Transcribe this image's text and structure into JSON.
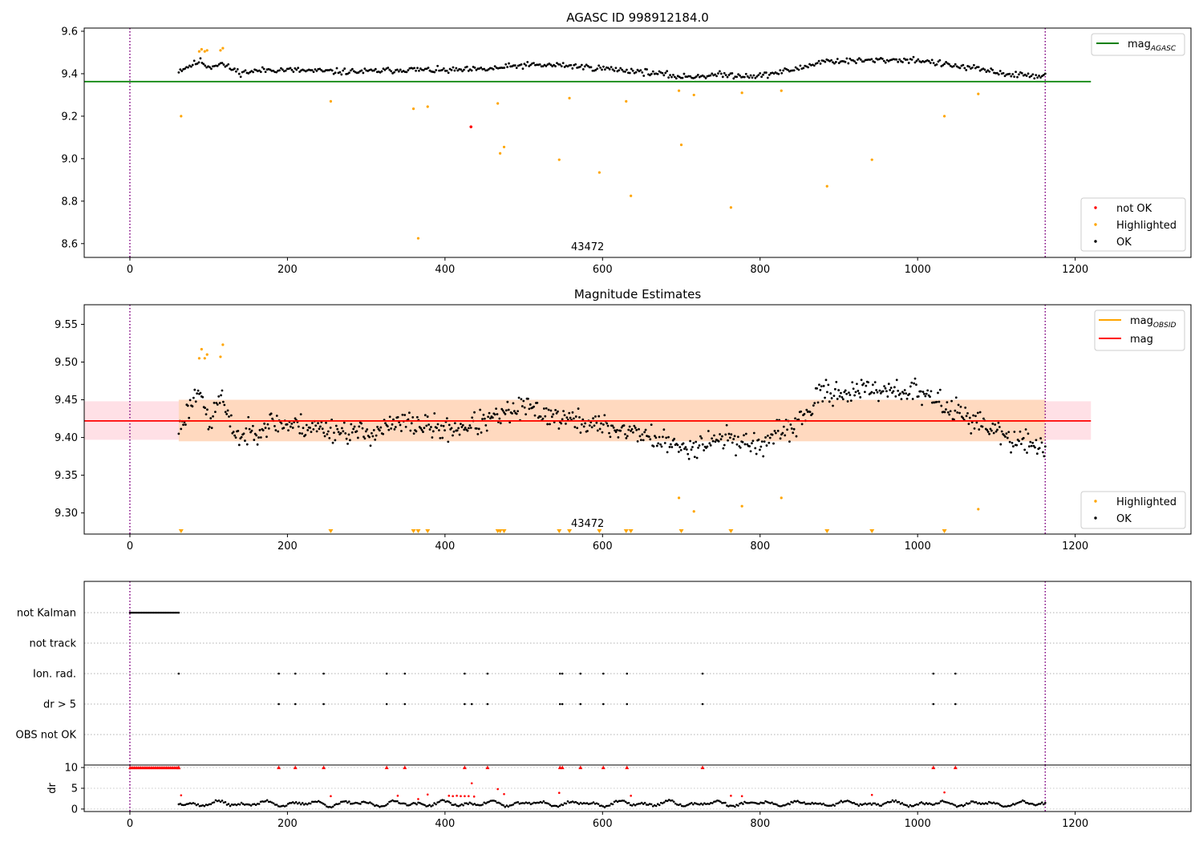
{
  "chart_data": [
    {
      "type": "scatter",
      "title": "AGASC ID 998912184.0",
      "xlim": [
        -58,
        1347
      ],
      "ylim": [
        8.535,
        9.615
      ],
      "xticks": [
        0,
        200,
        400,
        600,
        800,
        1000,
        1200
      ],
      "yticks": [
        8.6,
        8.8,
        9.0,
        9.2,
        9.4,
        9.6
      ],
      "ytick_labels": [
        "8.6",
        "8.8",
        "9.0",
        "9.2",
        "9.4",
        "9.6"
      ],
      "obsid_bounds": [
        0,
        1162
      ],
      "obsid_label": "43472",
      "obsid_label_x": 581,
      "legend_lines": [
        {
          "label": "mag",
          "sub": "AGASC",
          "color": "#008000"
        }
      ],
      "legend_points": [
        {
          "label": "not OK",
          "color": "#ff0000"
        },
        {
          "label": "Highlighted",
          "color": "#ffa500"
        },
        {
          "label": "OK",
          "color": "#000000"
        }
      ],
      "mag_agasc": {
        "value": 9.363,
        "x_range": [
          -58,
          1220
        ],
        "color": "#008000"
      },
      "ok_series": {
        "x_start": 62,
        "x_end": 1162,
        "n": 560,
        "color": "#000000",
        "profile_x": [
          62,
          90,
          100,
          115,
          125,
          140,
          180,
          260,
          300,
          350,
          400,
          450,
          500,
          550,
          600,
          650,
          700,
          750,
          800,
          850,
          880,
          920,
          960,
          1000,
          1040,
          1080,
          1120,
          1162
        ],
        "profile_y": [
          9.415,
          9.46,
          9.43,
          9.45,
          9.43,
          9.405,
          9.42,
          9.41,
          9.41,
          9.42,
          9.415,
          9.42,
          9.44,
          9.44,
          9.425,
          9.41,
          9.385,
          9.395,
          9.39,
          9.425,
          9.46,
          9.46,
          9.465,
          9.465,
          9.44,
          9.42,
          9.395,
          9.39
        ],
        "noise": 0.012
      },
      "highlighted": {
        "x": [
          65,
          88,
          91,
          95,
          98,
          115,
          118,
          255,
          360,
          366,
          378,
          467,
          470,
          475,
          545,
          558,
          596,
          630,
          636,
          697,
          700,
          716,
          763,
          777,
          827,
          885,
          942,
          1034,
          1077
        ],
        "y": [
          9.2,
          9.505,
          9.515,
          9.505,
          9.51,
          9.51,
          9.52,
          9.27,
          9.235,
          8.625,
          9.245,
          9.26,
          9.025,
          9.055,
          8.995,
          9.285,
          8.935,
          9.27,
          8.825,
          9.32,
          9.065,
          9.3,
          8.77,
          9.31,
          9.32,
          8.87,
          8.995,
          9.2,
          9.305
        ],
        "color": "#ffa500"
      },
      "not_ok": {
        "x": [
          433
        ],
        "y": [
          9.15
        ],
        "color": "#ff0000"
      }
    },
    {
      "type": "scatter",
      "title": "Magnitude Estimates",
      "xlim": [
        -58,
        1347
      ],
      "ylim": [
        9.272,
        9.576
      ],
      "xticks": [
        0,
        200,
        400,
        600,
        800,
        1000,
        1200
      ],
      "yticks": [
        9.3,
        9.35,
        9.4,
        9.45,
        9.5,
        9.55
      ],
      "ytick_labels": [
        "9.30",
        "9.35",
        "9.40",
        "9.45",
        "9.50",
        "9.55"
      ],
      "obsid_bounds": [
        0,
        1162
      ],
      "obsid_label": "43472",
      "obsid_label_x": 581,
      "legend_lines": [
        {
          "label": "mag",
          "sub": "OBSID",
          "color": "#ffa500"
        },
        {
          "label": "mag",
          "sub": "",
          "color": "#ff0000"
        }
      ],
      "legend_points": [
        {
          "label": "Highlighted",
          "color": "#ffa500"
        },
        {
          "label": "OK",
          "color": "#000000"
        }
      ],
      "mag": {
        "value": 9.422,
        "band": [
          9.397,
          9.448
        ],
        "x_range": [
          -58,
          1220
        ],
        "color": "#ff0000"
      },
      "mag_obsid": {
        "value": 9.422,
        "band": [
          9.395,
          9.45
        ],
        "x_range": [
          62,
          1162
        ],
        "color": "#ffa500"
      },
      "ok_series": {
        "x_start": 62,
        "x_end": 1162,
        "n": 760,
        "color": "#000000",
        "profile_x": [
          62,
          80,
          90,
          100,
          115,
          125,
          140,
          180,
          260,
          300,
          350,
          400,
          450,
          500,
          550,
          600,
          650,
          700,
          750,
          800,
          850,
          880,
          920,
          960,
          1000,
          1040,
          1080,
          1120,
          1162
        ],
        "profile_y": [
          9.41,
          9.45,
          9.47,
          9.41,
          9.46,
          9.42,
          9.4,
          9.42,
          9.41,
          9.405,
          9.42,
          9.41,
          9.42,
          9.44,
          9.425,
          9.415,
          9.405,
          9.385,
          9.4,
          9.39,
          9.42,
          9.46,
          9.46,
          9.465,
          9.46,
          9.44,
          9.42,
          9.395,
          9.39
        ],
        "noise": 0.013
      },
      "highlighted": {
        "x": [
          88,
          91,
          95,
          98,
          115,
          118,
          697,
          716,
          777,
          827,
          1077
        ],
        "y": [
          9.505,
          9.517,
          9.505,
          9.51,
          9.507,
          9.523,
          9.32,
          9.302,
          9.309,
          9.32,
          9.305
        ],
        "color": "#ffa500"
      },
      "lower_markers": {
        "x": [
          65,
          255,
          360,
          366,
          378,
          467,
          470,
          475,
          545,
          558,
          596,
          630,
          636,
          700,
          763,
          885,
          942,
          1034
        ],
        "color": "#ffa500"
      }
    },
    {
      "type": "scatter",
      "title": "",
      "xlim": [
        -58,
        1347
      ],
      "xticks": [
        0,
        200,
        400,
        600,
        800,
        1000,
        1200
      ],
      "obsid_bounds": [
        0,
        1162
      ],
      "flag_rows": [
        "not Kalman",
        "not track",
        "Ion. rad.",
        "dr > 5",
        "OBS not OK"
      ],
      "not_kalman": {
        "x_start": 0,
        "x_end": 62,
        "n": 30
      },
      "ion_rad": {
        "x": [
          62,
          189,
          210,
          246,
          326,
          349,
          425,
          454,
          546,
          549,
          572,
          601,
          631,
          727,
          1020,
          1048
        ]
      },
      "dr_gt_5": {
        "x": [
          189,
          210,
          246,
          326,
          349,
          425,
          434,
          454,
          546,
          549,
          572,
          601,
          631,
          727,
          1020,
          1048
        ]
      },
      "dr": {
        "ylabel": "dr",
        "yticks": [
          0,
          5,
          10
        ],
        "ylim": [
          -0.6,
          10.6
        ],
        "clip_value": 10,
        "clipped_x": [
          0,
          62,
          189,
          210,
          246,
          326,
          349,
          425,
          454,
          546,
          549,
          572,
          601,
          631,
          727,
          1020,
          1048
        ],
        "series": {
          "x_start": 62,
          "x_end": 1162,
          "n": 540,
          "base": 1.3,
          "amp": 0.7
        },
        "red_x": [
          65,
          255,
          340,
          366,
          378,
          405,
          410,
          415,
          420,
          425,
          430,
          434,
          437,
          467,
          475,
          545,
          636,
          763,
          777,
          942,
          1034
        ],
        "red_y": [
          3.3,
          3.1,
          3.2,
          2.4,
          3.5,
          3.2,
          3.1,
          3.2,
          3.1,
          3.1,
          3.1,
          6.2,
          3.0,
          4.8,
          3.6,
          3.9,
          3.2,
          3.2,
          3.1,
          3.4,
          4.0
        ]
      }
    }
  ]
}
